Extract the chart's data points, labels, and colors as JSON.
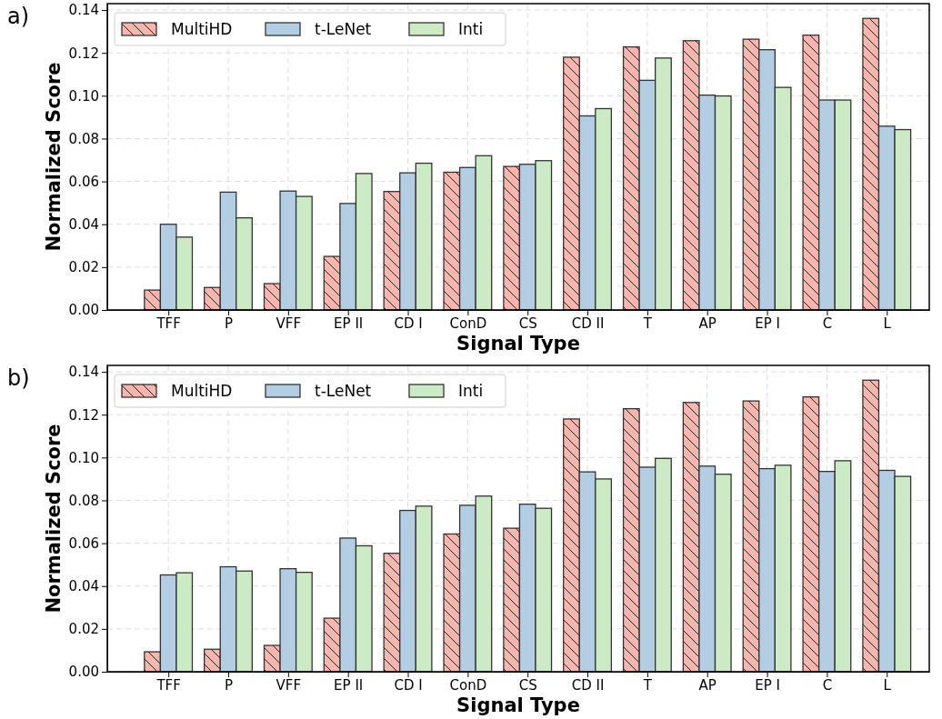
{
  "chart_data": [
    {
      "type": "bar",
      "annotations": [
        "a)"
      ],
      "xlabel": "Signal Type",
      "ylabel": "Normalized Score",
      "categories": [
        "TFF",
        "P",
        "VFF",
        "EP II",
        "CD I",
        "ConD",
        "CS",
        "CD II",
        "T",
        "AP",
        "EP I",
        "C",
        "L"
      ],
      "series": [
        {
          "name": "MultiHD",
          "color": "#fbb4ae",
          "values": [
            0.0093,
            0.0105,
            0.0123,
            0.025,
            0.0553,
            0.0643,
            0.067,
            0.118,
            0.1228,
            0.1257,
            0.1264,
            0.1283,
            0.1361
          ]
        },
        {
          "name": "t-LeNet",
          "color": "#b3cde3",
          "values": [
            0.04,
            0.055,
            0.0555,
            0.0497,
            0.064,
            0.0665,
            0.068,
            0.0906,
            0.1072,
            0.1003,
            0.1215,
            0.098,
            0.0858
          ]
        },
        {
          "name": "Inti",
          "color": "#ccebc5",
          "values": [
            0.034,
            0.043,
            0.053,
            0.0637,
            0.0685,
            0.072,
            0.0697,
            0.094,
            0.1176,
            0.0999,
            0.1039,
            0.098,
            0.0842
          ]
        }
      ],
      "ylim": [
        0,
        0.143
      ],
      "yticks": [
        {
          "value": 0,
          "label": "0.00"
        },
        {
          "value": 0.02,
          "label": "0.02"
        },
        {
          "value": 0.04,
          "label": "0.04"
        },
        {
          "value": 0.06,
          "label": "0.06"
        },
        {
          "value": 0.08,
          "label": "0.08"
        },
        {
          "value": 0.1,
          "label": "0.10"
        },
        {
          "value": 0.12,
          "label": "0.12"
        },
        {
          "value": 0.14,
          "label": "0.14"
        }
      ],
      "grid": true,
      "legend": "top left"
    },
    {
      "type": "bar",
      "annotations": [
        "b)"
      ],
      "xlabel": "Signal Type",
      "ylabel": "Normalized Score",
      "categories": [
        "TFF",
        "P",
        "VFF",
        "EP II",
        "CD I",
        "ConD",
        "CS",
        "CD II",
        "T",
        "AP",
        "EP I",
        "C",
        "L"
      ],
      "series": [
        {
          "name": "MultiHD",
          "color": "#fbb4ae",
          "values": [
            0.0093,
            0.0105,
            0.0123,
            0.025,
            0.0553,
            0.0643,
            0.067,
            0.118,
            0.1228,
            0.1257,
            0.1264,
            0.1283,
            0.1361
          ]
        },
        {
          "name": "t-LeNet",
          "color": "#b3cde3",
          "values": [
            0.0452,
            0.049,
            0.0481,
            0.0624,
            0.0753,
            0.0777,
            0.0782,
            0.0933,
            0.0955,
            0.096,
            0.0948,
            0.0935,
            0.094
          ]
        },
        {
          "name": "Inti",
          "color": "#ccebc5",
          "values": [
            0.0462,
            0.047,
            0.0464,
            0.0588,
            0.0773,
            0.082,
            0.0763,
            0.09,
            0.0996,
            0.0922,
            0.0964,
            0.0985,
            0.0912
          ]
        }
      ],
      "ylim": [
        0,
        0.143
      ],
      "yticks": [
        {
          "value": 0,
          "label": "0.00"
        },
        {
          "value": 0.02,
          "label": "0.02"
        },
        {
          "value": 0.04,
          "label": "0.04"
        },
        {
          "value": 0.06,
          "label": "0.06"
        },
        {
          "value": 0.08,
          "label": "0.08"
        },
        {
          "value": 0.1,
          "label": "0.10"
        },
        {
          "value": 0.12,
          "label": "0.12"
        },
        {
          "value": 0.14,
          "label": "0.14"
        }
      ],
      "grid": true,
      "legend": "top left"
    }
  ]
}
